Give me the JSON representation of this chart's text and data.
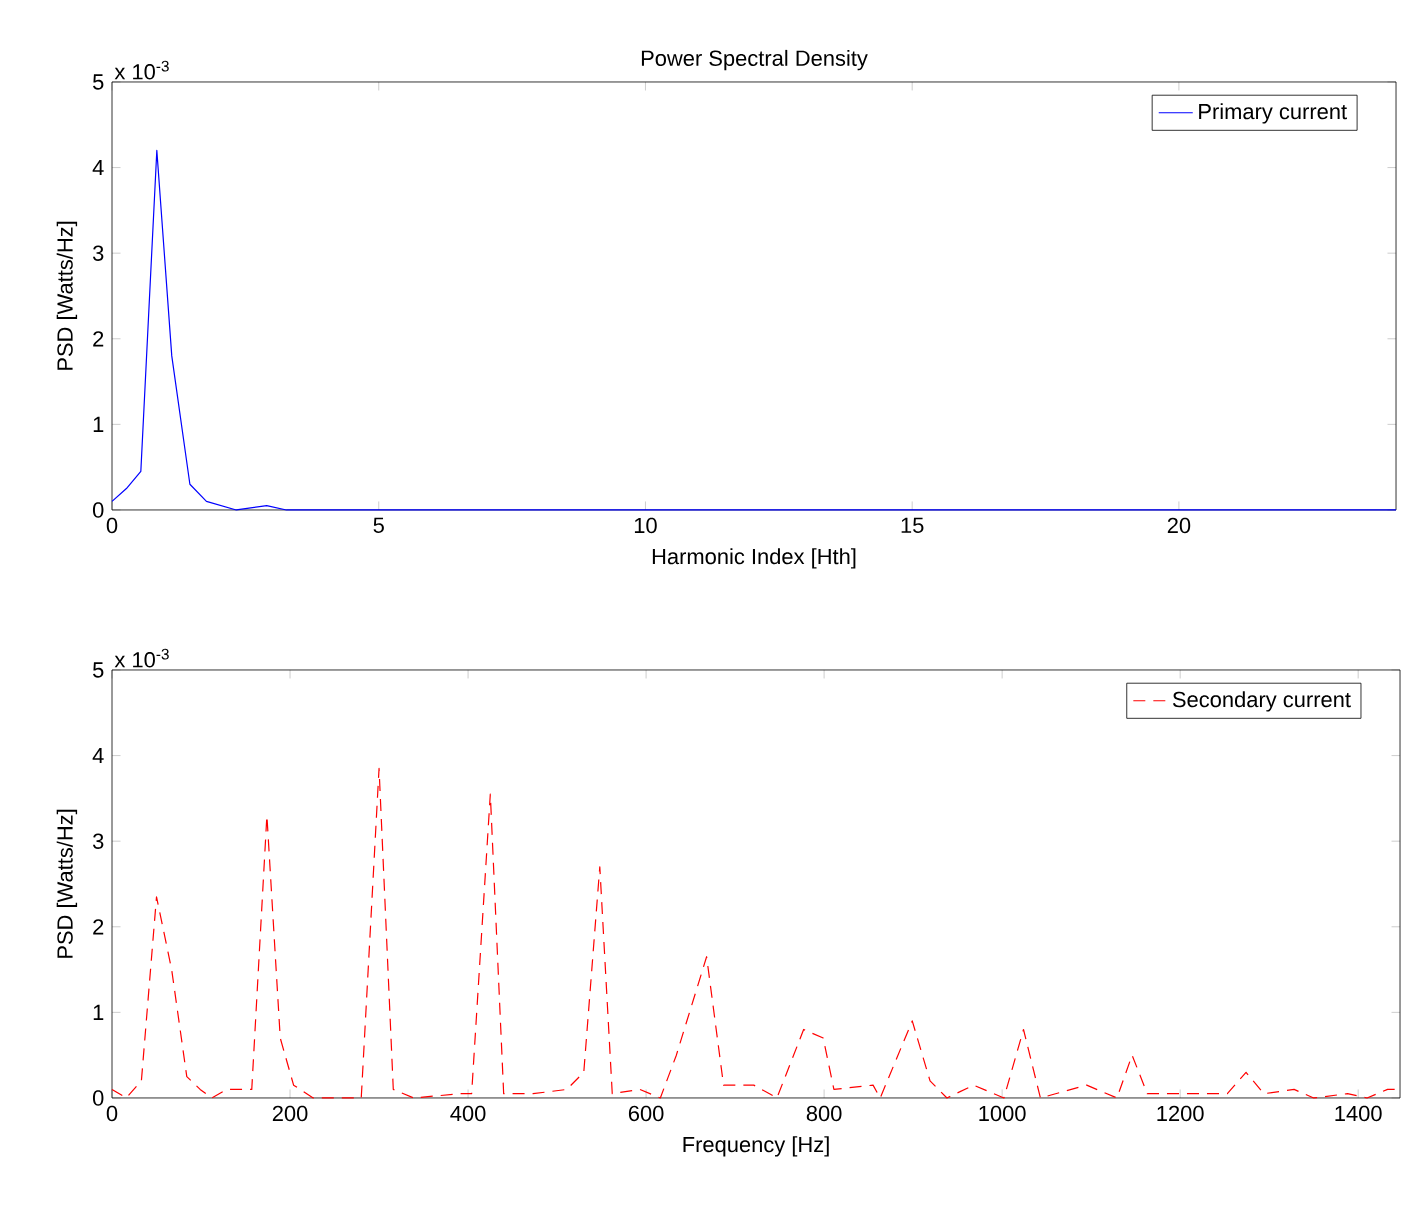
{
  "chart_data": [
    {
      "type": "line",
      "title": "Power Spectral Density",
      "xlabel": "Harmonic Index [Hth]",
      "ylabel": "PSD [Watts/Hz]",
      "annotations": [
        "x 10$^{-3}$"
      ],
      "xlim": [
        0,
        24.07
      ],
      "ylim": [
        0,
        5
      ],
      "xticks": [
        0,
        5,
        10,
        15,
        20
      ],
      "yticks": [
        0,
        1,
        2,
        3,
        4,
        5
      ],
      "legend": "top right",
      "series": [
        {
          "name": "Primary current",
          "color": "#0000ff",
          "line_style": "solid",
          "x": [
            0,
            0.27,
            0.54,
            0.84,
            1.12,
            1.46,
            1.77,
            2.33,
            2.9,
            3.27,
            24.07
          ],
          "values": [
            0.1,
            0.25,
            0.45,
            4.2,
            1.8,
            0.3,
            0.1,
            0.0,
            0.05,
            0.0,
            0.0
          ]
        }
      ]
    },
    {
      "type": "line",
      "xlabel": "Frequency [Hz]",
      "ylabel": "PSD [Watts/Hz]",
      "annotations": [
        "x 10$^{-3}$"
      ],
      "xlim": [
        0,
        1447
      ],
      "ylim": [
        0,
        5
      ],
      "xticks": [
        0,
        200,
        400,
        600,
        800,
        1000,
        1200,
        1400
      ],
      "yticks": [
        0,
        1,
        2,
        3,
        4,
        5
      ],
      "legend": "top right",
      "series": [
        {
          "name": "Secondary current",
          "color": "#ff0000",
          "line_style": "dashed",
          "x": [
            0,
            16,
            33,
            50,
            67,
            84,
            99,
            112,
            129,
            157,
            174,
            189,
            204,
            226,
            264,
            280,
            300,
            316,
            339,
            391,
            404,
            425,
            440,
            473,
            511,
            530,
            548,
            562,
            593,
            616,
            634,
            668,
            687,
            721,
            747,
            777,
            799,
            811,
            855,
            863,
            899,
            919,
            938,
            968,
            1002,
            1024,
            1043,
            1095,
            1129,
            1146,
            1163,
            1208,
            1253,
            1274,
            1294,
            1328,
            1350,
            1388,
            1410,
            1433,
            1447
          ],
          "values": [
            0.1,
            0.0,
            0.2,
            2.35,
            1.5,
            0.25,
            0.1,
            0.0,
            0.1,
            0.1,
            3.3,
            0.7,
            0.15,
            0.0,
            0.0,
            0.0,
            3.85,
            0.1,
            0.0,
            0.05,
            0.05,
            3.55,
            0.05,
            0.05,
            0.1,
            0.3,
            2.7,
            0.05,
            0.1,
            0.0,
            0.5,
            1.65,
            0.15,
            0.15,
            0.0,
            0.8,
            0.7,
            0.1,
            0.15,
            0.0,
            0.9,
            0.2,
            0.0,
            0.15,
            0.0,
            0.8,
            0.0,
            0.15,
            0.0,
            0.5,
            0.05,
            0.05,
            0.05,
            0.3,
            0.05,
            0.1,
            0.0,
            0.05,
            0.0,
            0.1,
            0.1
          ]
        }
      ]
    }
  ]
}
